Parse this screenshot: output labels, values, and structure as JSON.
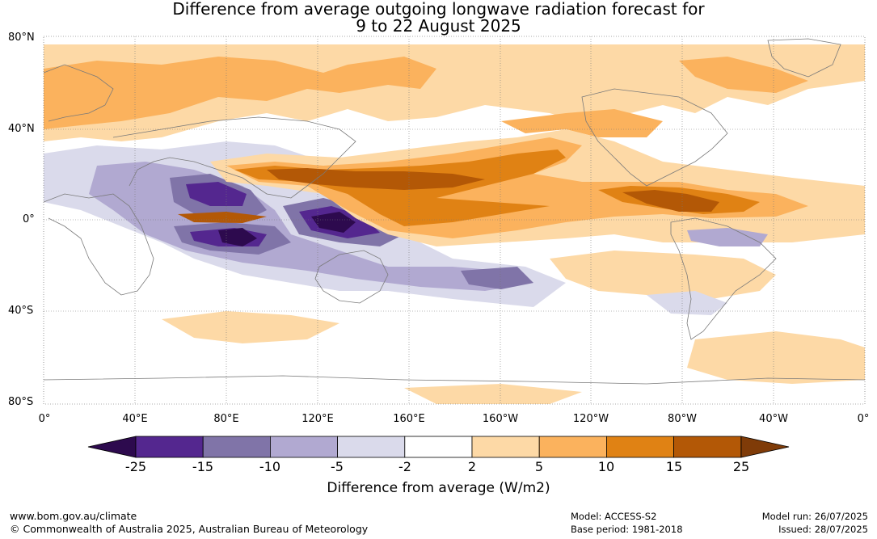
{
  "title": {
    "line1": "Difference from average outgoing longwave radiation forecast for",
    "line2": "9 to 22 August 2025"
  },
  "map": {
    "lat_labels": [
      "80°N",
      "40°N",
      "0°",
      "40°S",
      "80°S"
    ],
    "lon_labels": [
      "0°",
      "40°E",
      "80°E",
      "120°E",
      "160°E",
      "160°W",
      "120°W",
      "80°W",
      "40°W",
      "0°"
    ]
  },
  "colorbar": {
    "ticks": [
      "-25",
      "-15",
      "-10",
      "-5",
      "-2",
      "2",
      "5",
      "10",
      "15",
      "25"
    ],
    "colors": [
      "#2d0a4e",
      "#54278f",
      "#8074a8",
      "#b1a9d1",
      "#dadaeb",
      "#ffffff",
      "#fdd9a6",
      "#fbb25d",
      "#e08214",
      "#b35806",
      "#7f3b08"
    ],
    "label": "Difference from average (W/m2)"
  },
  "footer": {
    "site": "www.bom.gov.au/climate",
    "copyright": "© Commonwealth of Australia 2025, Australian Bureau of Meteorology",
    "model": "Model: ACCESS-S2",
    "base_period": "Base period: 1981-2018",
    "model_run": "Model run: 26/07/2025",
    "issued": "Issued: 28/07/2025"
  }
}
